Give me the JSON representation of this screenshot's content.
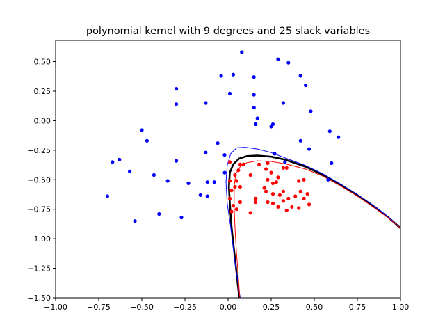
{
  "chart_data": {
    "type": "scatter",
    "title": "polynomial kernel with 9 degrees and 25 slack variables",
    "xlabel": "",
    "ylabel": "",
    "xlim": [
      -1.0,
      1.0
    ],
    "ylim": [
      -1.5,
      0.68
    ],
    "grid": false,
    "legend": "none",
    "x_ticks": [
      {
        "value": -1.0,
        "label": "−1.00"
      },
      {
        "value": -0.75,
        "label": "−0.75"
      },
      {
        "value": -0.5,
        "label": "−0.50"
      },
      {
        "value": -0.25,
        "label": "−0.25"
      },
      {
        "value": 0.0,
        "label": "0.00"
      },
      {
        "value": 0.25,
        "label": "0.25"
      },
      {
        "value": 0.5,
        "label": "0.50"
      },
      {
        "value": 0.75,
        "label": "0.75"
      },
      {
        "value": 1.0,
        "label": "1.00"
      }
    ],
    "y_ticks": [
      {
        "value": 0.5,
        "label": "0.50"
      },
      {
        "value": 0.25,
        "label": "0.25"
      },
      {
        "value": 0.0,
        "label": "0.00"
      },
      {
        "value": -0.25,
        "label": "−0.25"
      },
      {
        "value": -0.5,
        "label": "−0.50"
      },
      {
        "value": -0.75,
        "label": "−0.75"
      },
      {
        "value": -1.0,
        "label": "−1.00"
      },
      {
        "value": -1.25,
        "label": "−1.25"
      },
      {
        "value": -1.5,
        "label": "−1.50"
      }
    ],
    "scatter_series": [
      {
        "color": "#0000ff",
        "points": [
          [
            0.08,
            0.58
          ],
          [
            0.29,
            0.52
          ],
          [
            0.35,
            0.49
          ],
          [
            -0.04,
            0.38
          ],
          [
            0.03,
            0.39
          ],
          [
            0.15,
            0.37
          ],
          [
            0.42,
            0.38
          ],
          [
            0.45,
            0.3
          ],
          [
            -0.3,
            0.27
          ],
          [
            0.01,
            0.23
          ],
          [
            0.15,
            0.22
          ],
          [
            0.32,
            0.15
          ],
          [
            -0.3,
            0.14
          ],
          [
            -0.13,
            0.15
          ],
          [
            0.15,
            0.11
          ],
          [
            0.48,
            0.08
          ],
          [
            0.17,
            0.02
          ],
          [
            0.16,
            -0.03
          ],
          [
            0.26,
            -0.03
          ],
          [
            0.25,
            -0.05
          ],
          [
            -0.5,
            -0.08
          ],
          [
            0.59,
            -0.09
          ],
          [
            -0.47,
            -0.17
          ],
          [
            0.64,
            -0.14
          ],
          [
            0.42,
            -0.17
          ],
          [
            -0.06,
            -0.19
          ],
          [
            0.47,
            -0.24
          ],
          [
            -0.13,
            -0.27
          ],
          [
            0.27,
            -0.28
          ],
          [
            -0.02,
            -0.29
          ],
          [
            -0.63,
            -0.33
          ],
          [
            -0.67,
            -0.35
          ],
          [
            -0.3,
            -0.34
          ],
          [
            0.33,
            -0.35
          ],
          [
            0.6,
            -0.36
          ],
          [
            -0.57,
            -0.43
          ],
          [
            -0.02,
            -0.44
          ],
          [
            -0.43,
            -0.46
          ],
          [
            -0.35,
            -0.51
          ],
          [
            -0.12,
            -0.52
          ],
          [
            -0.08,
            -0.52
          ],
          [
            0.58,
            -0.5
          ],
          [
            -0.23,
            -0.53
          ],
          [
            -0.16,
            -0.63
          ],
          [
            -0.12,
            -0.64
          ],
          [
            -0.7,
            -0.64
          ],
          [
            -0.4,
            -0.79
          ],
          [
            -0.27,
            -0.82
          ],
          [
            -0.54,
            -0.85
          ]
        ]
      },
      {
        "color": "#ff0000",
        "points": [
          [
            0.01,
            -0.35
          ],
          [
            0.07,
            -0.37
          ],
          [
            0.09,
            -0.37
          ],
          [
            0.18,
            -0.37
          ],
          [
            0.23,
            -0.36
          ],
          [
            0.32,
            -0.4
          ],
          [
            0.22,
            -0.41
          ],
          [
            0.06,
            -0.42
          ],
          [
            0.04,
            -0.46
          ],
          [
            0.13,
            -0.46
          ],
          [
            0.25,
            -0.44
          ],
          [
            0.34,
            -0.4
          ],
          [
            0.29,
            -0.48
          ],
          [
            0.23,
            -0.5
          ],
          [
            0.01,
            -0.51
          ],
          [
            0.05,
            -0.51
          ],
          [
            0.26,
            -0.53
          ],
          [
            0.28,
            -0.52
          ],
          [
            0.41,
            -0.51
          ],
          [
            0.44,
            -0.5
          ],
          [
            0.07,
            -0.56
          ],
          [
            0.04,
            -0.56
          ],
          [
            0.21,
            -0.57
          ],
          [
            0.02,
            -0.59
          ],
          [
            0.22,
            -0.6
          ],
          [
            0.32,
            -0.6
          ],
          [
            0.26,
            -0.62
          ],
          [
            0.3,
            -0.63
          ],
          [
            0.42,
            -0.6
          ],
          [
            0.39,
            -0.64
          ],
          [
            0.46,
            -0.62
          ],
          [
            0.01,
            -0.66
          ],
          [
            0.16,
            -0.66
          ],
          [
            0.35,
            -0.66
          ],
          [
            0.32,
            -0.68
          ],
          [
            0.44,
            -0.66
          ],
          [
            0.07,
            -0.69
          ],
          [
            0.16,
            -0.69
          ],
          [
            0.23,
            -0.69
          ],
          [
            0.26,
            -0.7
          ],
          [
            0.47,
            -0.71
          ],
          [
            0.03,
            -0.72
          ],
          [
            0.29,
            -0.73
          ],
          [
            0.37,
            -0.73
          ],
          [
            0.05,
            -0.75
          ],
          [
            0.34,
            -0.76
          ],
          [
            0.41,
            -0.74
          ],
          [
            0.02,
            -0.77
          ],
          [
            0.13,
            -0.78
          ]
        ]
      }
    ],
    "boundaries": [
      {
        "role": "decision",
        "color": "#000000",
        "width": 2.6,
        "points": [
          [
            0.065,
            -1.5
          ],
          [
            0.05,
            -1.3
          ],
          [
            0.035,
            -1.1
          ],
          [
            0.02,
            -0.9
          ],
          [
            0.01,
            -0.7
          ],
          [
            0.005,
            -0.56
          ],
          [
            0.01,
            -0.44
          ],
          [
            0.03,
            -0.37
          ],
          [
            0.065,
            -0.32
          ],
          [
            0.11,
            -0.3
          ],
          [
            0.17,
            -0.295
          ],
          [
            0.25,
            -0.305
          ],
          [
            0.33,
            -0.33
          ],
          [
            0.45,
            -0.39
          ],
          [
            0.55,
            -0.46
          ],
          [
            0.65,
            -0.54
          ],
          [
            0.75,
            -0.63
          ],
          [
            0.85,
            -0.73
          ],
          [
            0.93,
            -0.82
          ],
          [
            1.0,
            -0.91
          ]
        ]
      },
      {
        "role": "margin",
        "color": "#0000ff",
        "width": 1.0,
        "points": [
          [
            0.07,
            -1.5
          ],
          [
            0.04,
            -1.2
          ],
          [
            0.015,
            -0.9
          ],
          [
            -0.005,
            -0.7
          ],
          [
            -0.012,
            -0.52
          ],
          [
            -0.005,
            -0.38
          ],
          [
            0.015,
            -0.28
          ],
          [
            0.05,
            -0.23
          ],
          [
            0.1,
            -0.225
          ],
          [
            0.17,
            -0.24
          ],
          [
            0.25,
            -0.27
          ],
          [
            0.33,
            -0.315
          ],
          [
            0.45,
            -0.38
          ],
          [
            0.55,
            -0.45
          ],
          [
            0.65,
            -0.535
          ],
          [
            0.75,
            -0.625
          ],
          [
            0.85,
            -0.725
          ],
          [
            0.93,
            -0.815
          ],
          [
            1.0,
            -0.91
          ]
        ]
      },
      {
        "role": "margin",
        "color": "#ff0000",
        "width": 1.0,
        "points": [
          [
            0.068,
            -1.5
          ],
          [
            0.058,
            -1.3
          ],
          [
            0.048,
            -1.1
          ],
          [
            0.04,
            -0.9
          ],
          [
            0.035,
            -0.72
          ],
          [
            0.036,
            -0.55
          ],
          [
            0.045,
            -0.45
          ],
          [
            0.07,
            -0.39
          ],
          [
            0.11,
            -0.355
          ],
          [
            0.17,
            -0.34
          ],
          [
            0.25,
            -0.345
          ],
          [
            0.33,
            -0.365
          ],
          [
            0.45,
            -0.41
          ],
          [
            0.55,
            -0.47
          ],
          [
            0.65,
            -0.55
          ],
          [
            0.75,
            -0.64
          ],
          [
            0.85,
            -0.74
          ],
          [
            0.93,
            -0.825
          ],
          [
            1.0,
            -0.91
          ]
        ]
      }
    ]
  }
}
